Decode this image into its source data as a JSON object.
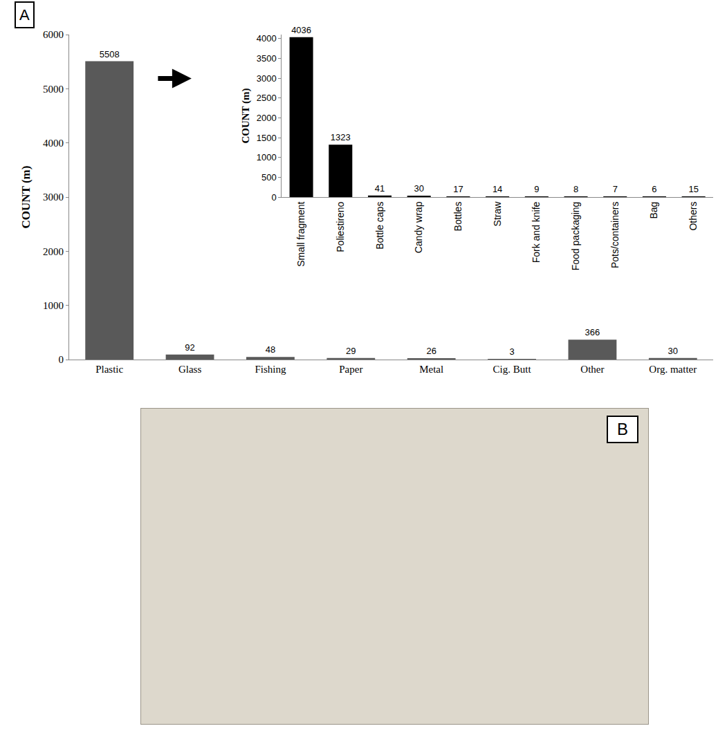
{
  "chart_data": [
    {
      "type": "bar",
      "categories": [
        "Plastic",
        "Glass",
        "Fishing",
        "Paper",
        "Metal",
        "Cig. Butt",
        "Other",
        "Org. matter"
      ],
      "values": [
        5508,
        92,
        48,
        29,
        26,
        3,
        366,
        30
      ],
      "color": "#595959",
      "ylabel": "COUNT (m)",
      "ylim": [
        0,
        6000
      ],
      "yticks": [
        0,
        1000,
        2000,
        3000,
        4000,
        5000,
        6000
      ],
      "grid": false,
      "data_labels": true
    },
    {
      "type": "bar",
      "categories": [
        "Small fragment",
        "Poliestireno",
        "Bottle caps",
        "Candy wrap",
        "Bottles",
        "Straw",
        "Fork and knife",
        "Food packaging",
        "Pots/containers",
        "Bag",
        "Others"
      ],
      "values": [
        4036,
        1323,
        41,
        30,
        17,
        14,
        9,
        8,
        7,
        6,
        15
      ],
      "color": "#000000",
      "ylabel": "COUNT (m)",
      "ylim": [
        0,
        4100
      ],
      "yticks": [
        0,
        500,
        1000,
        1500,
        2000,
        2500,
        3000,
        3500,
        4000
      ],
      "grid": false,
      "data_labels": true
    }
  ],
  "panels": {
    "chart": "A",
    "photo": "B"
  }
}
